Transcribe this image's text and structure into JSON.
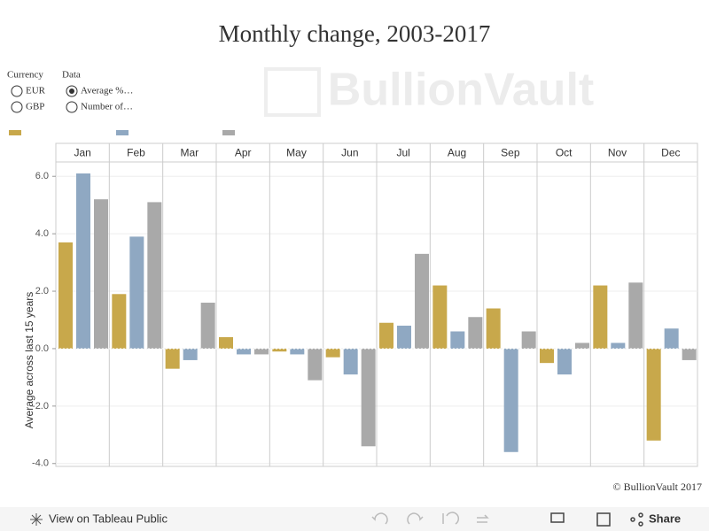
{
  "chart_data": {
    "type": "bar",
    "title": "Monthly change, 2003-2017",
    "y_label": "Average across last 15 years",
    "categories": [
      "Jan",
      "Feb",
      "Mar",
      "Apr",
      "May",
      "Jun",
      "Jul",
      "Aug",
      "Sep",
      "Oct",
      "Nov",
      "Dec"
    ],
    "series": [
      {
        "color": "#c8a84b",
        "values": [
          3.7,
          1.9,
          -0.7,
          0.4,
          -0.1,
          -0.3,
          0.9,
          2.2,
          1.4,
          -0.5,
          2.2,
          -3.2
        ]
      },
      {
        "color": "#8fa8c2",
        "values": [
          6.1,
          3.9,
          -0.4,
          -0.2,
          -0.2,
          -0.9,
          0.8,
          0.6,
          -3.6,
          -0.9,
          0.2,
          0.7
        ]
      },
      {
        "color": "#a9a9a9",
        "values": [
          5.2,
          5.1,
          1.6,
          -0.2,
          -1.1,
          -3.4,
          3.3,
          1.1,
          0.6,
          0.2,
          2.3,
          -0.4
        ]
      }
    ],
    "ylim": [
      -4.1,
      6.5
    ],
    "yticks": [
      {
        "value": -4,
        "label": "-4.0"
      },
      {
        "value": -2,
        "label": "-2.0"
      },
      {
        "value": 0,
        "label": "0.0"
      },
      {
        "value": 2,
        "label": "2.0"
      },
      {
        "value": 4,
        "label": "4.0"
      },
      {
        "value": 6,
        "label": "6.0"
      }
    ],
    "grid": true
  },
  "controls": {
    "currency": {
      "title": "Currency",
      "options": [
        "EUR",
        "GBP"
      ],
      "selected": null
    },
    "data": {
      "title": "Data",
      "options": [
        "Average %…",
        "Number of…"
      ],
      "selected": 0
    }
  },
  "watermark": "BullionVault",
  "credit": "© BullionVault 2017",
  "toolbar": {
    "view": "View on Tableau Public",
    "share": "Share"
  }
}
